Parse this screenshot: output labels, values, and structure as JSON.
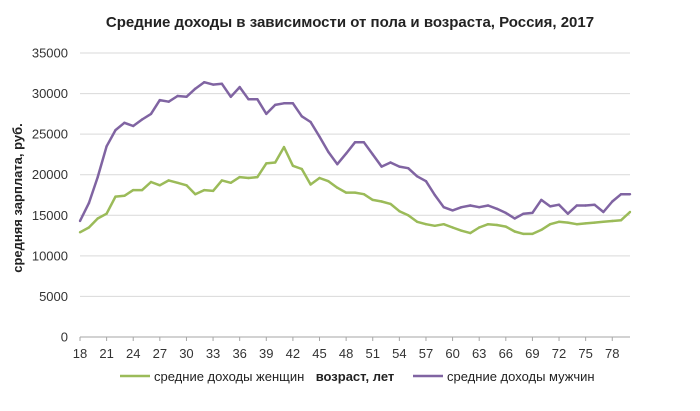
{
  "chart_data": {
    "type": "line",
    "title": "Средние доходы в зависимости от пола и возраста,  Россия, 2017",
    "xlabel": "возраст, лет",
    "ylabel": "средняя зарплата, руб.",
    "ylim": [
      0,
      35000
    ],
    "yticks": [
      0,
      5000,
      10000,
      15000,
      20000,
      25000,
      30000,
      35000
    ],
    "xlim": [
      18,
      80
    ],
    "xticks": [
      18,
      21,
      24,
      27,
      30,
      33,
      36,
      39,
      42,
      45,
      48,
      51,
      54,
      57,
      60,
      63,
      66,
      69,
      72,
      75,
      78
    ],
    "grid": "horizontal",
    "legend_position": "bottom",
    "x": [
      18,
      19,
      20,
      21,
      22,
      23,
      24,
      25,
      26,
      27,
      28,
      29,
      30,
      31,
      32,
      33,
      34,
      35,
      36,
      37,
      38,
      39,
      40,
      41,
      42,
      43,
      44,
      45,
      46,
      47,
      48,
      49,
      50,
      51,
      52,
      53,
      54,
      55,
      56,
      57,
      58,
      59,
      60,
      61,
      62,
      63,
      64,
      65,
      66,
      67,
      68,
      69,
      70,
      71,
      72,
      73,
      74,
      75,
      76,
      77,
      78,
      79,
      80
    ],
    "series": [
      {
        "name": "средние доходы женщин",
        "color": "#9bbb59",
        "values": [
          12900,
          13500,
          14600,
          15200,
          17300,
          17400,
          18100,
          18100,
          19100,
          18700,
          19300,
          19000,
          18700,
          17600,
          18100,
          18000,
          19300,
          19000,
          19700,
          19600,
          19700,
          21400,
          21500,
          23400,
          21100,
          20700,
          18800,
          19600,
          19200,
          18400,
          17800,
          17800,
          17600,
          16900,
          16700,
          16400,
          15500,
          15000,
          14200,
          13900,
          13700,
          13900,
          13500,
          13100,
          12800,
          13500,
          13900,
          13800,
          13600,
          13000,
          12700,
          12700,
          13200,
          13900,
          14200,
          14100,
          13900,
          14000,
          14100,
          14200,
          14300,
          14400,
          15400
        ]
      },
      {
        "name": "средние доходы мужчин",
        "color": "#8064a2",
        "values": [
          14300,
          16500,
          19700,
          23500,
          25500,
          26400,
          26000,
          26800,
          27500,
          29200,
          29000,
          29700,
          29600,
          30600,
          31400,
          31100,
          31200,
          29600,
          30800,
          29300,
          29300,
          27500,
          28600,
          28800,
          28800,
          27200,
          26500,
          24700,
          22800,
          21300,
          22600,
          24000,
          24000,
          22500,
          21000,
          21500,
          21000,
          20800,
          19800,
          19200,
          17500,
          16000,
          15600,
          16000,
          16200,
          16000,
          16200,
          15800,
          15300,
          14600,
          15200,
          15300,
          16900,
          16100,
          16300,
          15200,
          16200,
          16200,
          16300,
          15400,
          16700,
          17600,
          17600
        ]
      }
    ]
  }
}
